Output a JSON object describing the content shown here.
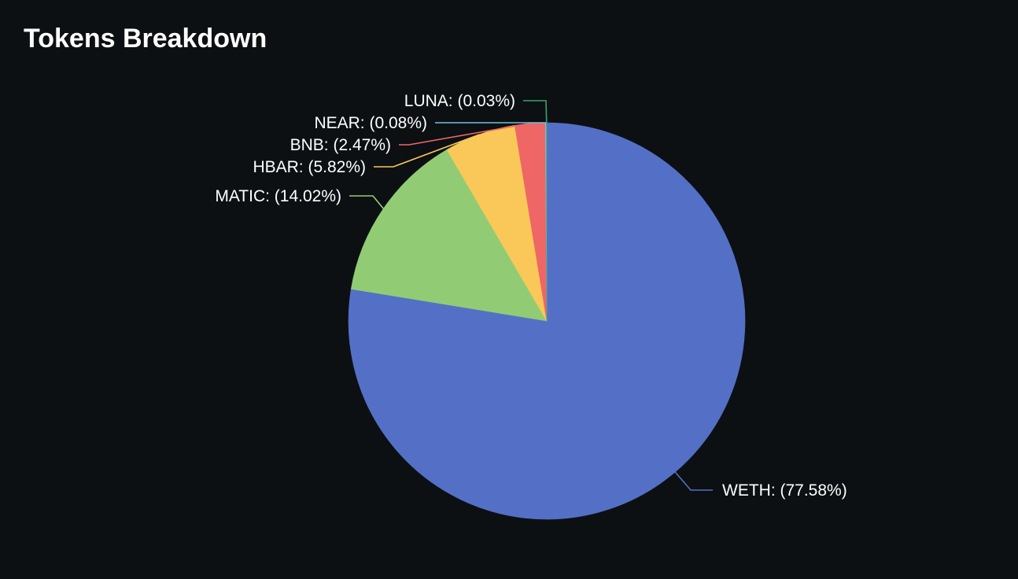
{
  "chart_data": {
    "type": "pie",
    "title": "Tokens Breakdown",
    "start_angle_deg": 90,
    "direction": "clockwise",
    "slices": [
      {
        "label": "WETH",
        "value": 77.58,
        "text": "WETH: (77.58%)",
        "color": "#5470c6"
      },
      {
        "label": "MATIC",
        "value": 14.02,
        "text": "MATIC: (14.02%)",
        "color": "#91cc75"
      },
      {
        "label": "HBAR",
        "value": 5.82,
        "text": "HBAR: (5.82%)",
        "color": "#fac858"
      },
      {
        "label": "BNB",
        "value": 2.47,
        "text": "BNB: (2.47%)",
        "color": "#ee6666"
      },
      {
        "label": "NEAR",
        "value": 0.08,
        "text": "NEAR: (0.08%)",
        "color": "#73c0de"
      },
      {
        "label": "LUNA",
        "value": 0.03,
        "text": "LUNA: (0.03%)",
        "color": "#3ba272"
      }
    ]
  }
}
